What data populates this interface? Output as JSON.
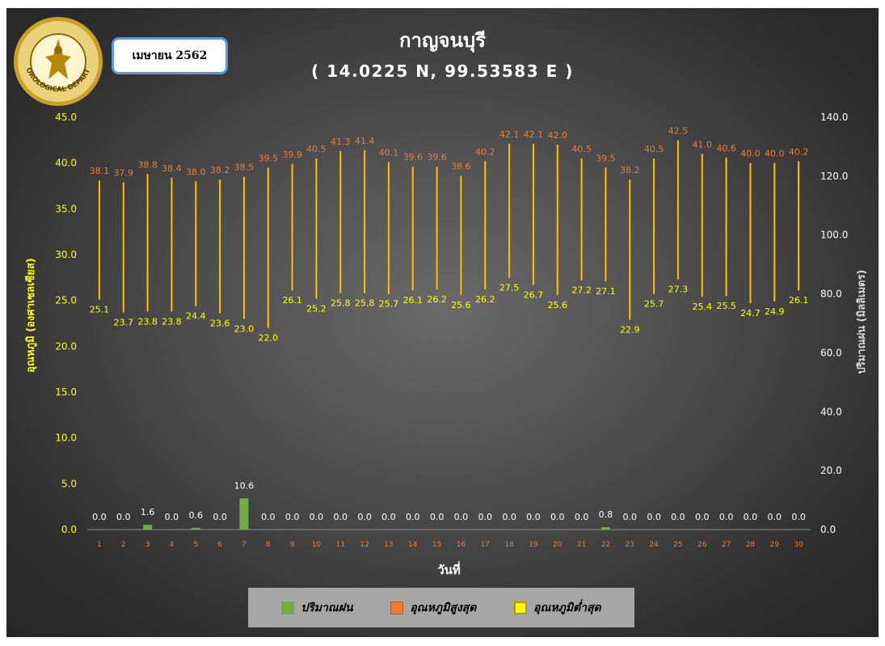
{
  "header": {
    "month_label": "เมษายน 2562",
    "title": "กาญจนบุรี",
    "subtitle": "( 14.0225 N, 99.53583 E )",
    "logo_text": "METEOROLOGICAL DEPARTMENT"
  },
  "legend": {
    "rain_label": "ปริมาณฝน",
    "max_label": "อุณหภูมิสูงสุด",
    "min_label": "อุณหภูมิต่ำสุด"
  },
  "colors": {
    "rain": "#70ad47",
    "max": "#ed7d31",
    "min": "#ffff00",
    "bar_line": "#ffc000",
    "left_axis": "#ffff00",
    "right_axis": "#ffffff",
    "day_tick": "#ed7d31"
  },
  "chart_data": {
    "type": "bar",
    "xlabel": "วันที่",
    "ylabel_left": "อุณหภูมิ (องศาเซลเซียส)",
    "ylabel_right": "ปริมาณฝน (มิลลิเมตร)",
    "ylim_left": [
      0,
      45
    ],
    "yticks_left": [
      "0.0",
      "5.0",
      "10.0",
      "15.0",
      "20.0",
      "25.0",
      "30.0",
      "35.0",
      "40.0",
      "45.0"
    ],
    "ylim_right": [
      0,
      140
    ],
    "yticks_right": [
      "0.0",
      "20.0",
      "40.0",
      "60.0",
      "80.0",
      "100.0",
      "120.0",
      "140.0"
    ],
    "categories": [
      "1",
      "2",
      "3",
      "4",
      "5",
      "6",
      "7",
      "8",
      "9",
      "10",
      "11",
      "12",
      "13",
      "14",
      "15",
      "16",
      "17",
      "18",
      "19",
      "20",
      "21",
      "22",
      "23",
      "24",
      "25",
      "26",
      "27",
      "28",
      "29",
      "30"
    ],
    "series": [
      {
        "name": "ปริมาณฝน",
        "axis": "right",
        "values": [
          0.0,
          0.0,
          1.6,
          0.0,
          0.6,
          0.0,
          10.6,
          0.0,
          0.0,
          0.0,
          0.0,
          0.0,
          0.0,
          0.0,
          0.0,
          0.0,
          0.0,
          0.0,
          0.0,
          0.0,
          0.0,
          0.8,
          0.0,
          0.0,
          0.0,
          0.0,
          0.0,
          0.0,
          0.0,
          0.0
        ]
      },
      {
        "name": "อุณหภูมิสูงสุด",
        "axis": "left",
        "values": [
          38.1,
          37.9,
          38.8,
          38.4,
          38.0,
          38.2,
          38.5,
          39.5,
          39.9,
          40.5,
          41.3,
          41.4,
          40.1,
          39.6,
          39.6,
          38.6,
          40.2,
          42.1,
          42.1,
          42.0,
          40.5,
          39.5,
          38.2,
          40.5,
          42.5,
          41.0,
          40.6,
          40.0,
          40.0,
          40.2
        ]
      },
      {
        "name": "อุณหภูมิต่ำสุด",
        "axis": "left",
        "values": [
          25.1,
          23.7,
          23.8,
          23.8,
          24.4,
          23.6,
          23.0,
          22.0,
          26.1,
          25.2,
          25.8,
          25.8,
          25.7,
          26.1,
          26.2,
          25.6,
          26.2,
          27.5,
          26.7,
          25.6,
          27.2,
          27.1,
          22.9,
          25.7,
          27.3,
          25.4,
          25.5,
          24.7,
          24.9,
          26.1
        ]
      }
    ]
  }
}
